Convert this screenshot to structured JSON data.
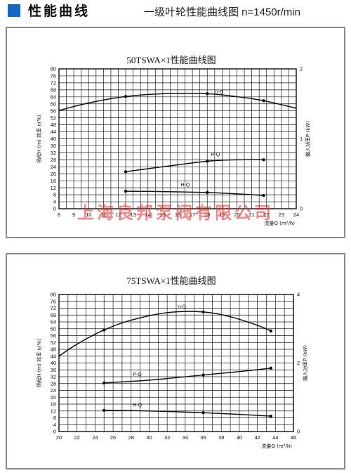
{
  "header": {
    "title": "性能曲线",
    "subtitle": "一级叶轮性能曲线图 n=1450r/min"
  },
  "watermark": "上海良邦泵阀有限公司",
  "colors": {
    "accent": "#1666c9",
    "watermark": "#e22828"
  },
  "chart_data": [
    {
      "type": "line",
      "title": "50TSWA×1性能曲线图",
      "xlabel": "流量Q (m³/h)",
      "ylabel_left": "扬程H (m)   效率 η(%)",
      "ylabel_right": "输入功率P (kW)",
      "xlim": [
        8,
        24
      ],
      "xticks": [
        8,
        9,
        10,
        11,
        12,
        13,
        14,
        15,
        16,
        17,
        18,
        19,
        20,
        21,
        22,
        23,
        24
      ],
      "ylim": [
        0,
        80
      ],
      "yticks": [
        0,
        4,
        8,
        12,
        16,
        20,
        24,
        28,
        32,
        36,
        40,
        44,
        48,
        52,
        56,
        60,
        64,
        68,
        72,
        76,
        80
      ],
      "y2lim": [
        0,
        2
      ],
      "y2ticks": [
        0,
        1,
        2
      ],
      "grid": true,
      "series": [
        {
          "name": "η-Q",
          "axis": "left",
          "x": [
            8,
            10,
            12.5,
            15,
            18,
            20,
            21.8,
            24
          ],
          "y": [
            56.2,
            60.5,
            64.2,
            65.8,
            65.8,
            64.1,
            61.8,
            57.5
          ],
          "markers": [
            12.5,
            18,
            21.8
          ]
        },
        {
          "name": "P-Q",
          "axis": "right",
          "x": [
            12.5,
            15,
            18,
            20,
            21.8
          ],
          "y": [
            0.53,
            0.6,
            0.68,
            0.7,
            0.7
          ],
          "markers": [
            12.5,
            18,
            21.8
          ]
        },
        {
          "name": "H-Q",
          "axis": "left",
          "x": [
            12.5,
            15,
            18,
            20,
            21.8
          ],
          "y": [
            10,
            9.8,
            9.3,
            8.5,
            7.6
          ],
          "markers": [
            12.5,
            18,
            21.8
          ]
        }
      ]
    },
    {
      "type": "line",
      "title": "75TSWA×1性能曲线图",
      "xlabel": "流量Q (m³/h)",
      "ylabel_left": "扬程H (m)   效率 η(%)",
      "ylabel_right": "输入功率P (kW)",
      "xlim": [
        20,
        46
      ],
      "xticks": [
        20,
        22,
        24,
        26,
        28,
        30,
        32,
        34,
        36,
        38,
        40,
        42,
        44,
        46
      ],
      "ylim": [
        0,
        80
      ],
      "yticks": [
        0,
        4,
        8,
        12,
        16,
        20,
        24,
        28,
        32,
        36,
        40,
        44,
        48,
        52,
        56,
        60,
        64,
        68,
        72,
        76,
        80
      ],
      "y2lim": [
        0,
        4
      ],
      "y2ticks": [
        0,
        2,
        4
      ],
      "grid": true,
      "series": [
        {
          "name": "η-Q",
          "axis": "left",
          "x": [
            20,
            22,
            25,
            28,
            32,
            36,
            39,
            42,
            43.5
          ],
          "y": [
            44,
            51,
            59.3,
            65,
            69.4,
            69.8,
            67,
            62,
            58.7
          ],
          "markers": [
            25,
            36,
            43.5
          ]
        },
        {
          "name": "P-Q",
          "axis": "right",
          "x": [
            25,
            30,
            36,
            40,
            43.5
          ],
          "y": [
            1.42,
            1.5,
            1.65,
            1.75,
            1.85
          ],
          "markers": [
            25,
            36,
            43.5
          ]
        },
        {
          "name": "H-Q",
          "axis": "left",
          "x": [
            25,
            30,
            36,
            40,
            43.5
          ],
          "y": [
            12.4,
            12,
            11,
            10,
            9
          ],
          "markers": [
            25,
            36,
            43.5
          ]
        }
      ]
    }
  ]
}
